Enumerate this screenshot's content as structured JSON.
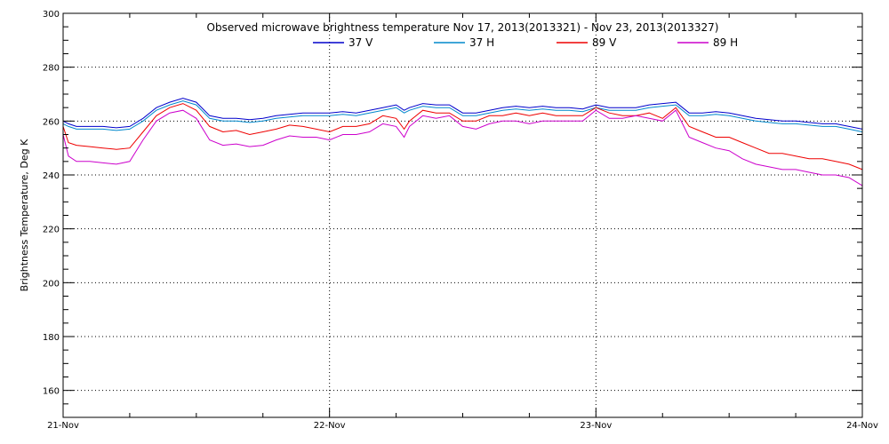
{
  "chart_data": {
    "type": "line",
    "title": "Observed microwave brightness temperature Nov 17, 2013(2013321) - Nov 23, 2013(2013327)",
    "xlabel": "",
    "ylabel": "Brightness Temperature, Deg K",
    "ylim": [
      150,
      300
    ],
    "yticks": [
      160,
      180,
      200,
      220,
      240,
      260,
      280,
      300
    ],
    "xlim": [
      0,
      3
    ],
    "xticks": [
      {
        "value": 0,
        "label": "21-Nov"
      },
      {
        "value": 1,
        "label": "22-Nov"
      },
      {
        "value": 2,
        "label": "23-Nov"
      },
      {
        "value": 3,
        "label": "24-Nov"
      }
    ],
    "grid": true,
    "legend_position": "top-center",
    "x": [
      0.0,
      0.02,
      0.05,
      0.1,
      0.15,
      0.2,
      0.25,
      0.3,
      0.35,
      0.4,
      0.45,
      0.5,
      0.55,
      0.6,
      0.65,
      0.7,
      0.75,
      0.8,
      0.85,
      0.9,
      0.95,
      1.0,
      1.05,
      1.1,
      1.15,
      1.2,
      1.25,
      1.28,
      1.3,
      1.35,
      1.4,
      1.45,
      1.5,
      1.55,
      1.6,
      1.65,
      1.7,
      1.75,
      1.8,
      1.85,
      1.9,
      1.95,
      2.0,
      2.05,
      2.1,
      2.15,
      2.2,
      2.25,
      2.3,
      2.35,
      2.4,
      2.45,
      2.5,
      2.55,
      2.6,
      2.65,
      2.7,
      2.75,
      2.8,
      2.85,
      2.9,
      2.95,
      3.0
    ],
    "series": [
      {
        "name": "37 V",
        "color": "#0000cc",
        "values": [
          260,
          259,
          258,
          258,
          258,
          257.5,
          258,
          261,
          265,
          267,
          268.5,
          267,
          262,
          261,
          261,
          260.5,
          261,
          262,
          262.5,
          263,
          263,
          263,
          263.5,
          263,
          264,
          265,
          266,
          264,
          265,
          266.5,
          266,
          266,
          263,
          263,
          264,
          265,
          265.5,
          265,
          265.5,
          265,
          265,
          264.5,
          266,
          265,
          265,
          265,
          266,
          266.5,
          267,
          263,
          263,
          263.5,
          263,
          262,
          261,
          260.5,
          260,
          260,
          259.5,
          259,
          259,
          258,
          257
        ]
      },
      {
        "name": "37 H",
        "color": "#0088cc",
        "values": [
          259,
          258,
          257,
          257,
          257,
          256.5,
          257,
          260,
          264,
          266,
          267.5,
          266,
          261,
          260,
          260,
          259.5,
          260,
          261,
          261.5,
          262,
          262,
          262,
          262.5,
          262,
          263,
          264,
          265,
          263,
          264,
          265.5,
          265,
          265,
          262,
          262,
          263,
          264,
          264.5,
          264,
          264.5,
          264,
          264,
          263.5,
          265,
          264,
          264,
          264,
          265,
          265.5,
          266,
          262,
          262,
          262.5,
          262,
          261,
          260,
          259.5,
          259,
          259,
          258.5,
          258,
          258,
          257,
          256
        ]
      },
      {
        "name": "89 V",
        "color": "#ee0000",
        "values": [
          258,
          252,
          251,
          250.5,
          250,
          249.5,
          250,
          256,
          262,
          265,
          266.5,
          264,
          258,
          256,
          256.5,
          255,
          256,
          257,
          258.5,
          258,
          257,
          256,
          258,
          258,
          259,
          262,
          261,
          257,
          260,
          264,
          263,
          263,
          260,
          260,
          262,
          262,
          263,
          262,
          263,
          262,
          262,
          262,
          265,
          263,
          262,
          262,
          263,
          261,
          265,
          258,
          256,
          254,
          254,
          252,
          250,
          248,
          248,
          247,
          246,
          246,
          245,
          244,
          242
        ]
      },
      {
        "name": "89 H",
        "color": "#cc00cc",
        "values": [
          255,
          247,
          245,
          245,
          244.5,
          244,
          245,
          253,
          260,
          263,
          264,
          261,
          253,
          251,
          251.5,
          250.5,
          251,
          253,
          254.5,
          254,
          254,
          253,
          255,
          255,
          256,
          259,
          258,
          254,
          258,
          262,
          261,
          262,
          258,
          257,
          259,
          260,
          260,
          259,
          260,
          260,
          260,
          260,
          264,
          261,
          261,
          262,
          261,
          260,
          264,
          254,
          252,
          250,
          249,
          246,
          244,
          243,
          242,
          242,
          241,
          240,
          240,
          239,
          236
        ]
      }
    ]
  }
}
